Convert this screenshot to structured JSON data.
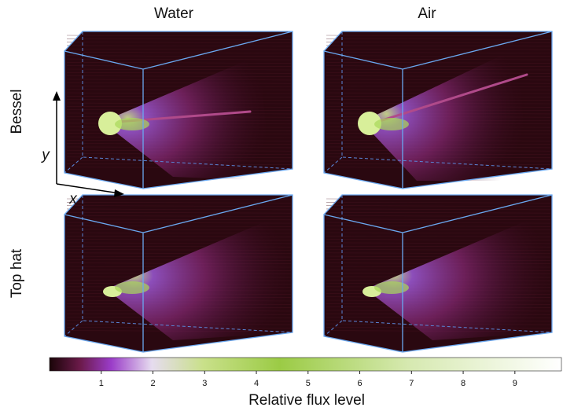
{
  "columns": [
    "Water",
    "Air"
  ],
  "rows": [
    "Bessel",
    "Top hat"
  ],
  "axes": {
    "x": "x",
    "y": "y"
  },
  "colorbar": {
    "label": "Relative flux level",
    "lim": [
      0,
      9.9
    ],
    "ticks": [
      1,
      2,
      3,
      4,
      5,
      6,
      7,
      8,
      9
    ]
  }
}
